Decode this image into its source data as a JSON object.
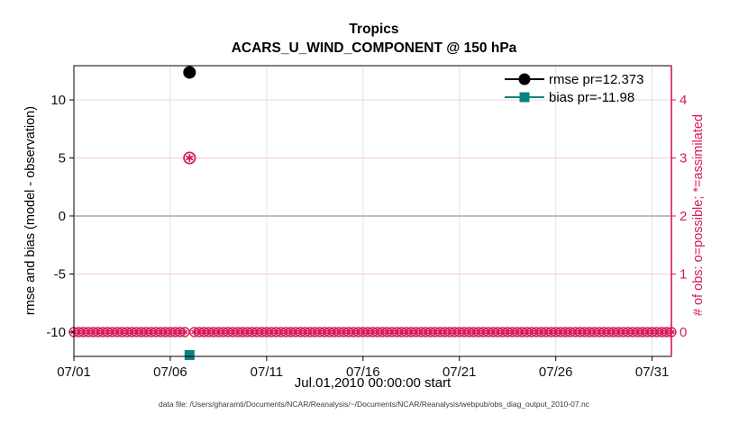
{
  "figure": {
    "title": "Tropics",
    "subtitle": "ACARS_U_WIND_COMPONENT @ 150 hPa",
    "caption": "data file: /Users/gharamti/Documents/NCAR/Reanalysis/~/Documents/NCAR/Reanalysis/webpub/obs_diag_output_2010-07.nc"
  },
  "legend": {
    "items": [
      {
        "label": "rmse pr=12.373",
        "marker": "filled-circle",
        "color": "#000000"
      },
      {
        "label": "bias pr=-11.98",
        "marker": "filled-square",
        "color": "#0e8181"
      }
    ]
  },
  "colors": {
    "obs_axis": "#d6195c",
    "rmse": "#000000",
    "bias": "#0e8181",
    "zero_line": "#c9b7c0",
    "grid_horizontal": "#f4cfdd",
    "grid_vertical": "#e2e2e2"
  },
  "chart_data": {
    "type": "line",
    "title": "Tropics",
    "subtitle": "ACARS_U_WIND_COMPONENT @ 150 hPa",
    "xlabel": "Jul.01,2010 00:00:00 start",
    "ylabel_left": "rmse and bias (model - observation)",
    "ylabel_right": "# of obs: o=possible; *=assimilated",
    "xlim_days": [
      0,
      31
    ],
    "ylim_left": [
      -12.1,
      12.95
    ],
    "x_ticks": [
      {
        "day": 0,
        "label": "07/01"
      },
      {
        "day": 5,
        "label": "07/06"
      },
      {
        "day": 10,
        "label": "07/11"
      },
      {
        "day": 15,
        "label": "07/16"
      },
      {
        "day": 20,
        "label": "07/21"
      },
      {
        "day": 25,
        "label": "07/26"
      },
      {
        "day": 30,
        "label": "07/31"
      }
    ],
    "left_ticks": [
      10,
      5,
      0,
      -5,
      -10
    ],
    "right_ticks": [
      4,
      3,
      2,
      1,
      0
    ],
    "right_axis": {
      "scale": 5,
      "offset": -10
    },
    "zero_line_value": 0,
    "grid": true,
    "legend_position": "top-right-inside",
    "series": [
      {
        "name": "rmse pr=12.373",
        "axis": "left",
        "color": "#000000",
        "marker": "filled-circle",
        "points": [
          {
            "day": 6,
            "value": 12.373
          }
        ]
      },
      {
        "name": "bias pr=-11.98",
        "axis": "left",
        "color": "#0e8181",
        "marker": "filled-square",
        "points": [
          {
            "day": 6,
            "value": -11.98
          }
        ]
      },
      {
        "name": "# of obs (o=possible, *=assimilated)",
        "axis": "right",
        "color": "#d6195c",
        "marker": "circle-asterisk",
        "bins": {
          "start_day": 0,
          "end_day": 31,
          "step_days": 0.25,
          "default_count": 0,
          "exceptions": [
            {
              "day": 6,
              "count": 3,
              "possible": 3,
              "assimilated": 3
            }
          ]
        }
      }
    ]
  }
}
